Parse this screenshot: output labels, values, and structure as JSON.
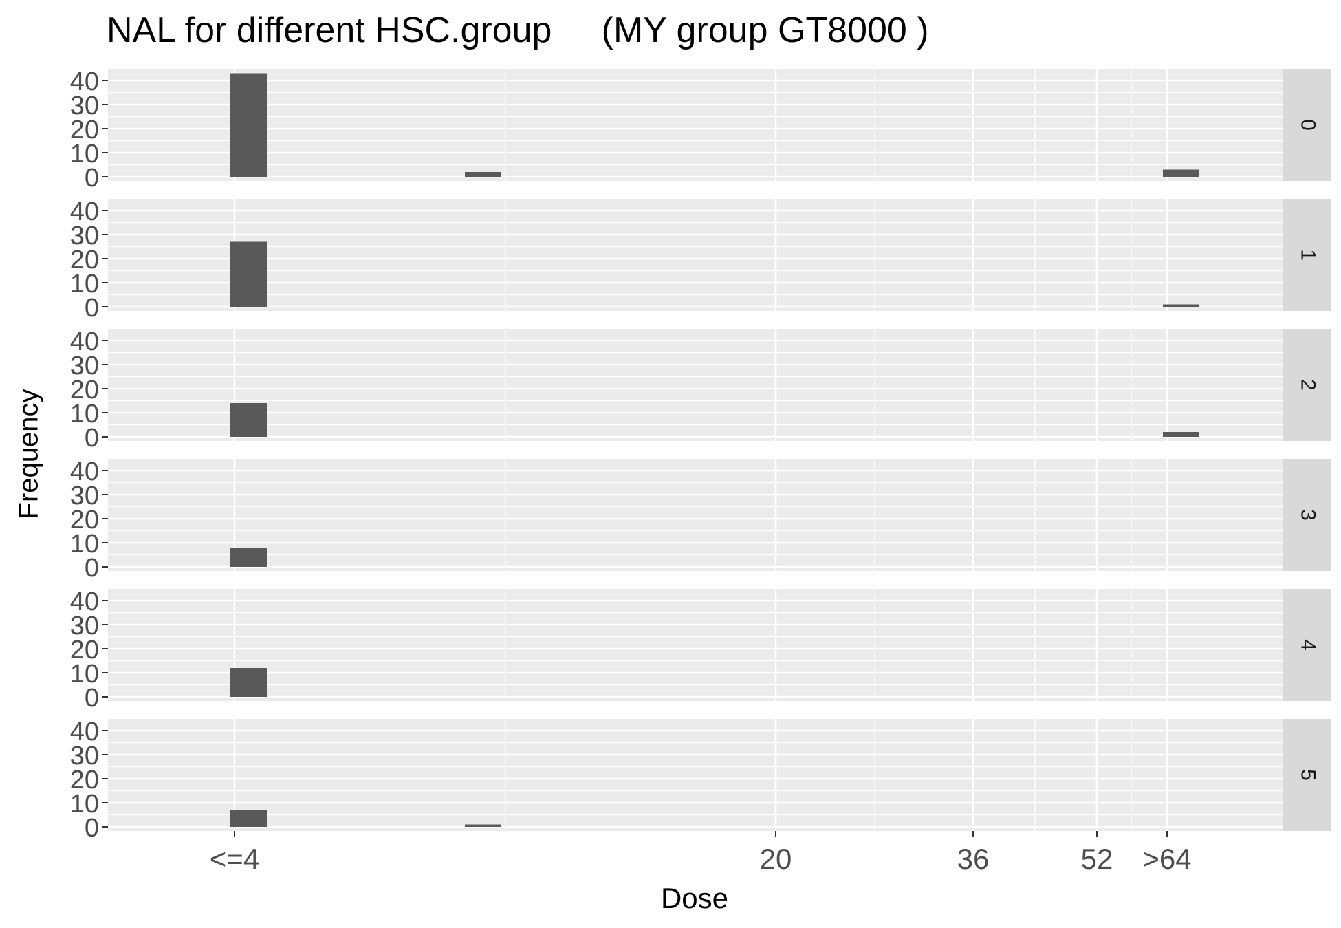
{
  "chart_data": {
    "type": "bar",
    "title": "NAL for different HSC.group     (MY group GT8000 )",
    "xlabel": "Dose",
    "ylabel": "Frequency",
    "x_ticks": [
      "<=4",
      "20",
      "36",
      "52",
      ">64"
    ],
    "ylim": [
      0,
      45
    ],
    "y_ticks": [
      0,
      10,
      20,
      30,
      40
    ],
    "grid": true,
    "facet_variable": "HSC.group",
    "panels": [
      {
        "label": "0",
        "bars": [
          {
            "x": "<=4",
            "value": 43
          },
          {
            "x": "~8",
            "value": 2
          },
          {
            "x": ">64",
            "value": 3
          }
        ]
      },
      {
        "label": "1",
        "bars": [
          {
            "x": "<=4",
            "value": 27
          },
          {
            "x": ">64",
            "value": 1
          }
        ]
      },
      {
        "label": "2",
        "bars": [
          {
            "x": "<=4",
            "value": 14
          },
          {
            "x": ">64",
            "value": 2
          }
        ]
      },
      {
        "label": "3",
        "bars": [
          {
            "x": "<=4",
            "value": 8
          }
        ]
      },
      {
        "label": "4",
        "bars": [
          {
            "x": "<=4",
            "value": 12
          }
        ]
      },
      {
        "label": "5",
        "bars": [
          {
            "x": "<=4",
            "value": 7
          },
          {
            "x": "~8",
            "value": 1
          }
        ]
      }
    ],
    "colors": {
      "panel_bg": "#ebebeb",
      "grid_major": "#ffffff",
      "strip_bg": "#d9d9d9",
      "bar_fill": "#595959",
      "axis_text": "#4d4d4d",
      "tick": "#333333"
    }
  }
}
